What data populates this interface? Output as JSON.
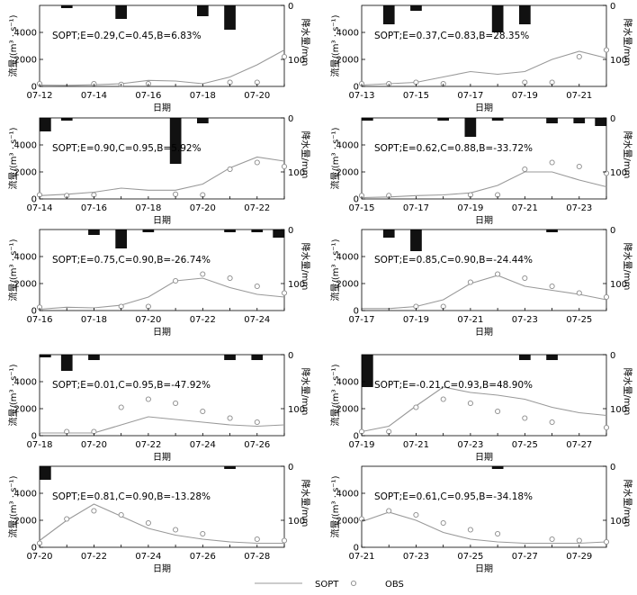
{
  "legend": {
    "sim_label": "SOPT",
    "obs_label": "OBS"
  },
  "axis_labels": {
    "y_left": "流量/(m³ · s⁻¹)",
    "y_right": "降水量/mm",
    "x": "日期"
  },
  "chart_data": [
    {
      "type": "line",
      "title": "SOPT;E=0.29,C=0.45,B=6.83%",
      "x": [
        "07-12",
        "07-13",
        "07-14",
        "07-15",
        "07-16",
        "07-17",
        "07-18",
        "07-19",
        "07-20",
        "07-21"
      ],
      "xticks": [
        "07-12",
        "07-14",
        "07-16",
        "07-18",
        "07-20"
      ],
      "sim": [
        100,
        80,
        120,
        200,
        450,
        400,
        200,
        700,
        1600,
        2700
      ],
      "obs": [
        200,
        null,
        200,
        150,
        200,
        null,
        null,
        300,
        300,
        2200
      ],
      "rain": [
        0,
        5,
        0,
        25,
        0,
        0,
        20,
        45,
        0,
        0
      ],
      "ylim": [
        0,
        6000
      ],
      "yticks": [
        0,
        2000,
        4000
      ],
      "rain_lim": [
        0,
        150
      ],
      "rain_ticks": [
        0,
        100
      ]
    },
    {
      "type": "line",
      "title": "SOPT;E=0.37,C=0.83,B=28.35%",
      "x": [
        "07-13",
        "07-14",
        "07-15",
        "07-16",
        "07-17",
        "07-18",
        "07-19",
        "07-20",
        "07-21",
        "07-22"
      ],
      "xticks": [
        "07-13",
        "07-15",
        "07-17",
        "07-19",
        "07-21"
      ],
      "sim": [
        100,
        200,
        300,
        700,
        1100,
        900,
        1100,
        2000,
        2600,
        2100
      ],
      "obs": [
        200,
        200,
        300,
        200,
        null,
        null,
        300,
        300,
        2200,
        2700
      ],
      "rain": [
        0,
        35,
        10,
        0,
        0,
        50,
        35,
        0,
        0,
        0
      ],
      "ylim": [
        0,
        6000
      ],
      "yticks": [
        0,
        2000,
        4000
      ],
      "rain_lim": [
        0,
        150
      ],
      "rain_ticks": [
        0,
        100
      ]
    },
    {
      "type": "line",
      "title": "SOPT;E=0.90,C=0.95,B=5.92%",
      "x": [
        "07-14",
        "07-15",
        "07-16",
        "07-17",
        "07-18",
        "07-19",
        "07-20",
        "07-21",
        "07-22",
        "07-23"
      ],
      "xticks": [
        "07-14",
        "07-16",
        "07-18",
        "07-20",
        "07-22"
      ],
      "sim": [
        250,
        350,
        500,
        800,
        650,
        650,
        1100,
        2300,
        3100,
        2800
      ],
      "obs": [
        300,
        250,
        300,
        null,
        null,
        350,
        300,
        2200,
        2700,
        2400
      ],
      "rain": [
        25,
        5,
        0,
        0,
        0,
        85,
        10,
        0,
        0,
        0
      ],
      "ylim": [
        0,
        6000
      ],
      "yticks": [
        0,
        2000,
        4000
      ],
      "rain_lim": [
        0,
        150
      ],
      "rain_ticks": [
        0,
        100
      ]
    },
    {
      "type": "line",
      "title": "SOPT;E=0.62,C=0.88,B=-33.72%",
      "x": [
        "07-15",
        "07-16",
        "07-17",
        "07-18",
        "07-19",
        "07-20",
        "07-21",
        "07-22",
        "07-23",
        "07-24"
      ],
      "xticks": [
        "07-15",
        "07-17",
        "07-19",
        "07-21",
        "07-23"
      ],
      "sim": [
        100,
        150,
        250,
        300,
        450,
        1000,
        2000,
        2000,
        1400,
        900
      ],
      "obs": [
        250,
        250,
        null,
        null,
        300,
        300,
        2200,
        2700,
        2400,
        1900
      ],
      "rain": [
        5,
        0,
        0,
        5,
        35,
        5,
        0,
        10,
        10,
        15
      ],
      "ylim": [
        0,
        6000
      ],
      "yticks": [
        0,
        2000,
        4000
      ],
      "rain_lim": [
        0,
        150
      ],
      "rain_ticks": [
        0,
        100
      ]
    },
    {
      "type": "line",
      "title": "SOPT;E=0.75,C=0.90,B=-26.74%",
      "x": [
        "07-16",
        "07-17",
        "07-18",
        "07-19",
        "07-20",
        "07-21",
        "07-22",
        "07-23",
        "07-24",
        "07-25"
      ],
      "xticks": [
        "07-16",
        "07-18",
        "07-20",
        "07-22",
        "07-24"
      ],
      "sim": [
        100,
        250,
        200,
        400,
        1000,
        2200,
        2400,
        1700,
        1200,
        1000
      ],
      "obs": [
        250,
        null,
        null,
        300,
        300,
        2200,
        2700,
        2400,
        1800,
        1300
      ],
      "rain": [
        0,
        0,
        10,
        35,
        5,
        0,
        0,
        5,
        5,
        15
      ],
      "ylim": [
        0,
        6000
      ],
      "yticks": [
        0,
        2000,
        4000
      ],
      "rain_lim": [
        0,
        150
      ],
      "rain_ticks": [
        0,
        100
      ]
    },
    {
      "type": "line",
      "title": "SOPT;E=0.85,C=0.90,B=-24.44%",
      "x": [
        "07-17",
        "07-18",
        "07-19",
        "07-20",
        "07-21",
        "07-22",
        "07-23",
        "07-24",
        "07-25",
        "07-26"
      ],
      "xticks": [
        "07-17",
        "07-19",
        "07-21",
        "07-23",
        "07-25"
      ],
      "sim": [
        150,
        150,
        300,
        800,
        2000,
        2600,
        1800,
        1500,
        1200,
        800
      ],
      "obs": [
        null,
        null,
        300,
        300,
        2100,
        2700,
        2400,
        1800,
        1300,
        1000
      ],
      "rain": [
        0,
        15,
        40,
        0,
        0,
        0,
        0,
        5,
        0,
        0
      ],
      "ylim": [
        0,
        6000
      ],
      "yticks": [
        0,
        2000,
        4000
      ],
      "rain_lim": [
        0,
        150
      ],
      "rain_ticks": [
        0,
        100
      ]
    },
    {
      "type": "line",
      "title": "SOPT;E=0.01,C=0.95,B=-47.92%",
      "x": [
        "07-18",
        "07-19",
        "07-20",
        "07-21",
        "07-22",
        "07-23",
        "07-24",
        "07-25",
        "07-26",
        "07-27"
      ],
      "xticks": [
        "07-18",
        "07-20",
        "07-22",
        "07-24",
        "07-26"
      ],
      "sim": [
        200,
        200,
        200,
        800,
        1400,
        1200,
        1000,
        800,
        700,
        800
      ],
      "obs": [
        null,
        300,
        300,
        2100,
        2700,
        2400,
        1800,
        1300,
        1000,
        null
      ],
      "rain": [
        5,
        30,
        10,
        0,
        0,
        0,
        0,
        10,
        10,
        0
      ],
      "ylim": [
        0,
        6000
      ],
      "yticks": [
        0,
        2000,
        4000
      ],
      "rain_lim": [
        0,
        150
      ],
      "rain_ticks": [
        0,
        100
      ]
    },
    {
      "type": "line",
      "title": "SOPT;E=-0.21,C=0.93,B=48.90%",
      "x": [
        "07-19",
        "07-20",
        "07-21",
        "07-22",
        "07-23",
        "07-24",
        "07-25",
        "07-26",
        "07-27",
        "07-28"
      ],
      "xticks": [
        "07-19",
        "07-21",
        "07-23",
        "07-25",
        "07-27"
      ],
      "sim": [
        300,
        700,
        2200,
        3600,
        3200,
        3000,
        2700,
        2100,
        1700,
        1500
      ],
      "obs": [
        300,
        300,
        2100,
        2700,
        2400,
        1800,
        1300,
        1000,
        null,
        600
      ],
      "rain": [
        60,
        0,
        0,
        0,
        0,
        0,
        10,
        10,
        0,
        0
      ],
      "ylim": [
        0,
        6000
      ],
      "yticks": [
        0,
        2000,
        4000
      ],
      "rain_lim": [
        0,
        150
      ],
      "rain_ticks": [
        0,
        100
      ]
    },
    {
      "type": "line",
      "title": "SOPT;E=0.81,C=0.90,B=-13.28%",
      "x": [
        "07-20",
        "07-21",
        "07-22",
        "07-23",
        "07-24",
        "07-25",
        "07-26",
        "07-27",
        "07-28",
        "07-29"
      ],
      "xticks": [
        "07-20",
        "07-22",
        "07-24",
        "07-26",
        "07-28"
      ],
      "sim": [
        500,
        2000,
        3200,
        2300,
        1400,
        900,
        600,
        400,
        300,
        300
      ],
      "obs": [
        300,
        2100,
        2700,
        2400,
        1800,
        1300,
        1000,
        null,
        600,
        500
      ],
      "rain": [
        25,
        0,
        0,
        0,
        0,
        0,
        0,
        5,
        0,
        0
      ],
      "ylim": [
        0,
        6000
      ],
      "yticks": [
        0,
        2000,
        4000
      ],
      "rain_lim": [
        0,
        150
      ],
      "rain_ticks": [
        0,
        100
      ]
    },
    {
      "type": "line",
      "title": "SOPT;E=0.61,C=0.95,B=-34.18%",
      "x": [
        "07-21",
        "07-22",
        "07-23",
        "07-24",
        "07-25",
        "07-26",
        "07-27",
        "07-28",
        "07-29",
        "07-30"
      ],
      "xticks": [
        "07-21",
        "07-23",
        "07-25",
        "07-27",
        "07-29"
      ],
      "sim": [
        1900,
        2600,
        2000,
        1100,
        600,
        400,
        300,
        300,
        300,
        400
      ],
      "obs": [
        2100,
        2700,
        2400,
        1800,
        1300,
        1000,
        null,
        600,
        500,
        400
      ],
      "rain": [
        0,
        0,
        0,
        0,
        0,
        5,
        0,
        0,
        0,
        0
      ],
      "ylim": [
        0,
        6000
      ],
      "yticks": [
        0,
        2000,
        4000
      ],
      "rain_lim": [
        0,
        150
      ],
      "rain_ticks": [
        0,
        100
      ]
    }
  ]
}
